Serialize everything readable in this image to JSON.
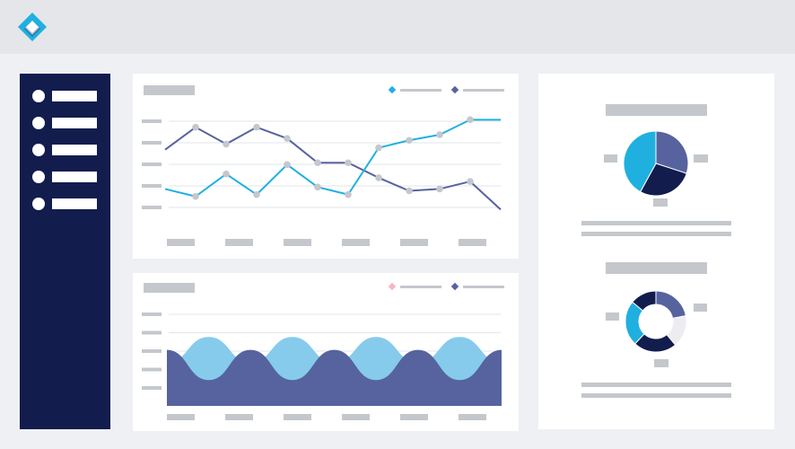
{
  "app": {
    "logo_icon": "diamond-logo-icon"
  },
  "sidebar": {
    "items": [
      {
        "icon": "nav-dot-icon"
      },
      {
        "icon": "nav-dot-icon"
      },
      {
        "icon": "nav-dot-icon"
      },
      {
        "icon": "nav-dot-icon"
      },
      {
        "icon": "nav-dot-icon"
      }
    ]
  },
  "colors": {
    "page_bg": "#eef0f3",
    "topbar": "#e4e6ea",
    "sidebar": "#121d4e",
    "cyan": "#1fb0e0",
    "slate": "#56639e",
    "navy": "#121d4e",
    "light_blue": "#86cbec",
    "pink": "#f3b8c2",
    "placeholder": "#c4c7cc",
    "gridline": "#e3e5e8",
    "marker": "#c4c7cc"
  },
  "chart_data": [
    {
      "type": "line",
      "x": [
        1,
        2,
        3,
        4,
        5,
        6,
        7,
        8,
        9,
        10,
        11,
        12
      ],
      "series": [
        {
          "color": "#56639e",
          "values": [
            4.0,
            5.2,
            4.3,
            5.2,
            4.6,
            3.3,
            3.3,
            2.5,
            1.8,
            1.9,
            2.3,
            0.8
          ]
        },
        {
          "color": "#1fb0e0",
          "values": [
            1.9,
            1.5,
            2.7,
            1.6,
            3.2,
            2.0,
            1.6,
            4.1,
            4.5,
            4.8,
            5.6,
            5.6
          ]
        }
      ],
      "ylim": [
        0,
        6
      ],
      "grid": true,
      "legend": "top-right"
    },
    {
      "type": "area",
      "series": [
        {
          "color": "#86cbec",
          "values": [
            1.0,
            1.6,
            1.0,
            1.6,
            1.0,
            1.6,
            1.0,
            1.6,
            1.0
          ]
        },
        {
          "color": "#56639e",
          "values": [
            1.3,
            0.6,
            1.3,
            0.6,
            1.3,
            0.6,
            1.3,
            0.6,
            1.3
          ]
        }
      ],
      "ylim": [
        0,
        2
      ],
      "grid": true,
      "legend": "top-right"
    },
    {
      "type": "pie",
      "values": [
        30,
        28,
        42
      ],
      "colors": [
        "#56639e",
        "#121d4e",
        "#1fb0e0"
      ]
    },
    {
      "type": "pie",
      "values": [
        22,
        17,
        23,
        24,
        14
      ],
      "colors": [
        "#56639e",
        "#ececf1",
        "#121d4e",
        "#1fb0e0",
        "#121d4e"
      ]
    }
  ]
}
